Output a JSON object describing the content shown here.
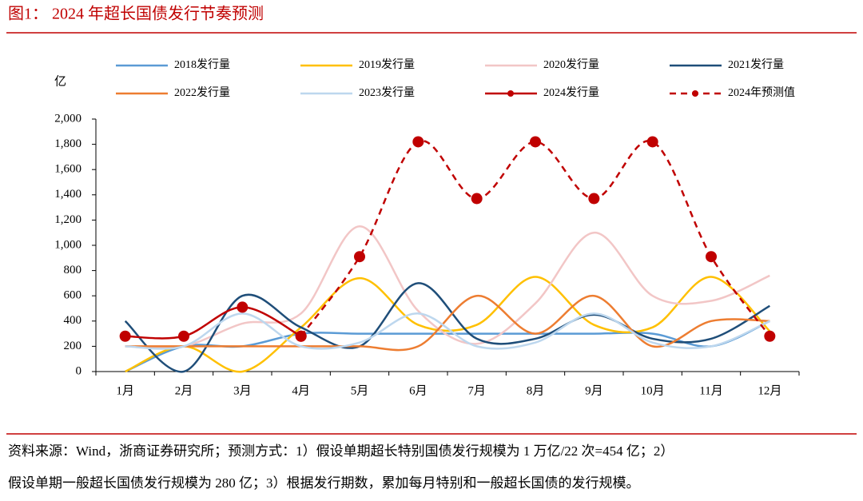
{
  "chart_data": {
    "type": "line",
    "title": "图1： 2024 年超长国债发行节奏预测",
    "y_unit": "亿",
    "categories": [
      "1月",
      "2月",
      "3月",
      "4月",
      "5月",
      "6月",
      "7月",
      "8月",
      "9月",
      "10月",
      "11月",
      "12月"
    ],
    "ylim": [
      0,
      2000
    ],
    "yticks": [
      0,
      200,
      400,
      600,
      800,
      {
        "value": 1000,
        "label": "1,000"
      },
      {
        "value": 1200,
        "label": "1,200"
      },
      {
        "value": 1400,
        "label": "1,400"
      },
      {
        "value": 1600,
        "label": "1,600"
      },
      {
        "value": 1800,
        "label": "1,800"
      },
      {
        "value": 2000,
        "label": "2,000"
      }
    ],
    "smooth": true,
    "series": [
      {
        "name": "2018发行量",
        "color": "#5b9bd5",
        "values": [
          0,
          200,
          200,
          300,
          300,
          300,
          300,
          300,
          300,
          300,
          200,
          400
        ]
      },
      {
        "name": "2019发行量",
        "color": "#ffc000",
        "values": [
          0,
          200,
          0,
          350,
          740,
          370,
          370,
          750,
          370,
          350,
          750,
          320
        ]
      },
      {
        "name": "2020发行量",
        "color": "#f2c6c6",
        "values": [
          200,
          200,
          380,
          460,
          1150,
          480,
          220,
          540,
          1100,
          600,
          560,
          760
        ]
      },
      {
        "name": "2021发行量",
        "color": "#1f4e79",
        "values": [
          400,
          0,
          600,
          350,
          200,
          700,
          260,
          260,
          450,
          260,
          260,
          520
        ]
      },
      {
        "name": "2022发行量",
        "color": "#ed7d31",
        "values": [
          200,
          200,
          200,
          200,
          200,
          200,
          600,
          300,
          600,
          200,
          400,
          400
        ]
      },
      {
        "name": "2023发行量",
        "color": "#bdd7ee",
        "values": [
          200,
          200,
          460,
          200,
          230,
          460,
          200,
          230,
          460,
          230,
          200,
          400
        ]
      },
      {
        "name": "2024发行量",
        "color": "#c00000",
        "marker": true,
        "values": [
          280,
          280,
          510,
          280,
          null,
          null,
          null,
          null,
          null,
          null,
          null,
          null
        ]
      },
      {
        "name": "2024年预测值",
        "color": "#c00000",
        "marker": true,
        "dashed": true,
        "values": [
          null,
          null,
          null,
          280,
          910,
          1820,
          1370,
          1820,
          1370,
          1820,
          910,
          280
        ]
      }
    ],
    "notes": [
      "资料来源：Wind，浙商证券研究所；预测方式：1）假设单期超长特别国债发行规模为 1 万亿/22 次=454 亿；2）",
      "假设单期一般超长国债发行规模为 280 亿；3）根据发行期数，累加每月特别和一般超长国债的发行规模。"
    ]
  }
}
